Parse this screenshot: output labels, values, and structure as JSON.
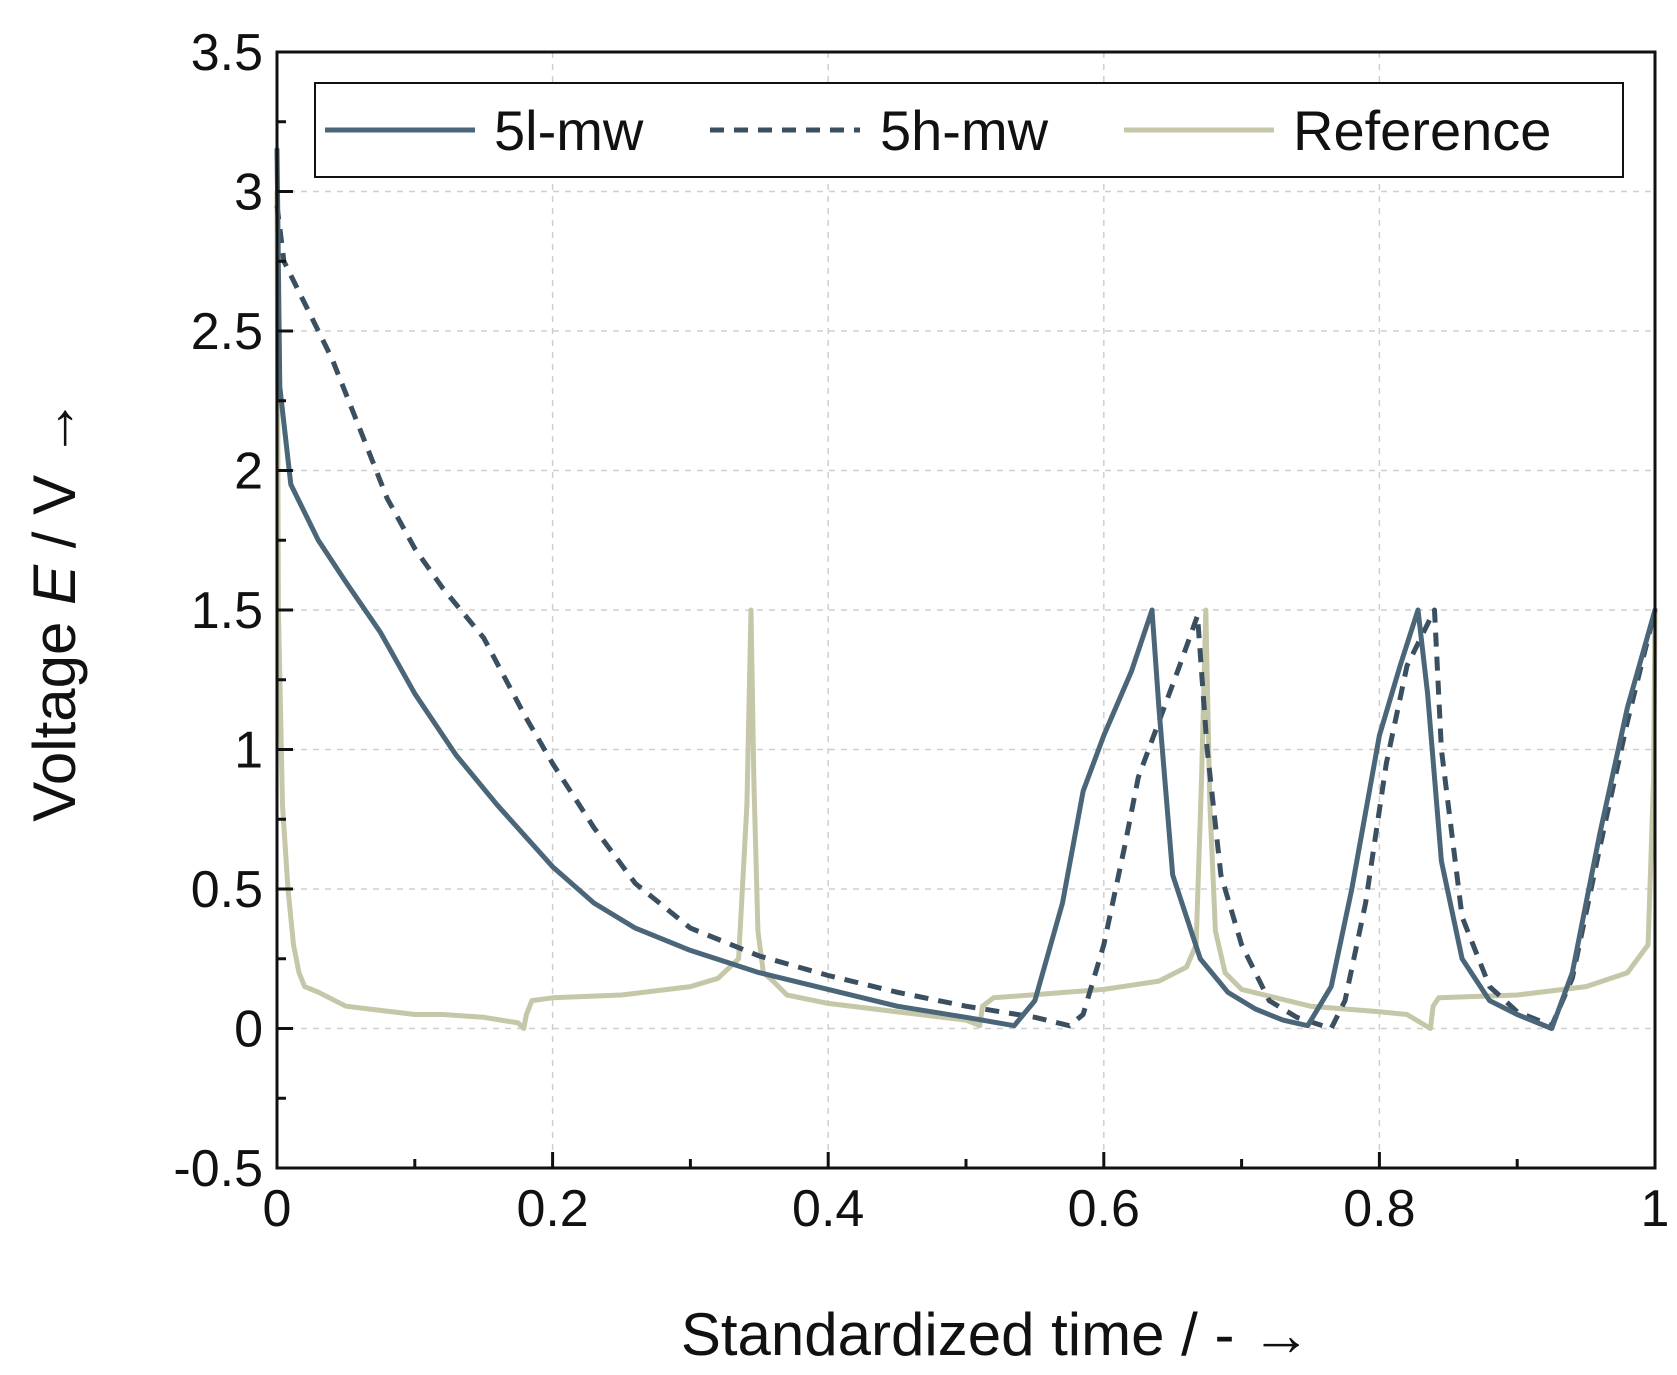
{
  "chart_data": {
    "type": "line",
    "title": "",
    "xlabel": "Standardized time / - →",
    "ylabel_parts": [
      "Voltage ",
      "E",
      " / V →"
    ],
    "xlim": [
      0,
      1
    ],
    "ylim": [
      -0.5,
      3.5
    ],
    "x_ticks": [
      0,
      0.2,
      0.4,
      0.6,
      0.8,
      1
    ],
    "x_tick_labels": [
      "0",
      "0.2",
      "0.4",
      "0.6",
      "0.8",
      "1"
    ],
    "y_ticks": [
      -0.5,
      0,
      0.5,
      1,
      1.5,
      2,
      2.5,
      3,
      3.5
    ],
    "y_tick_labels": [
      "-0.5",
      "0",
      "0.5",
      "1",
      "1.5",
      "2",
      "2.5",
      "3",
      "3.5"
    ],
    "grid": true,
    "legend_position": "top",
    "series": [
      {
        "name": "5l-mw",
        "color": "#4a6678",
        "style": "solid",
        "x": [
          0,
          0.002,
          0.01,
          0.03,
          0.05,
          0.075,
          0.1,
          0.13,
          0.16,
          0.2,
          0.23,
          0.26,
          0.3,
          0.35,
          0.4,
          0.45,
          0.5,
          0.535,
          0.55,
          0.57,
          0.585,
          0.6,
          0.62,
          0.635,
          0.64,
          0.65,
          0.67,
          0.69,
          0.71,
          0.73,
          0.748,
          0.765,
          0.78,
          0.8,
          0.815,
          0.828,
          0.835,
          0.845,
          0.86,
          0.88,
          0.9,
          0.925,
          0.94,
          0.96,
          0.98,
          1.0
        ],
        "y": [
          3.15,
          2.3,
          1.95,
          1.75,
          1.6,
          1.42,
          1.2,
          0.98,
          0.8,
          0.58,
          0.45,
          0.36,
          0.28,
          0.2,
          0.14,
          0.08,
          0.04,
          0.01,
          0.1,
          0.45,
          0.85,
          1.05,
          1.28,
          1.5,
          1.15,
          0.55,
          0.25,
          0.13,
          0.07,
          0.03,
          0.01,
          0.15,
          0.5,
          1.05,
          1.3,
          1.5,
          1.2,
          0.6,
          0.25,
          0.1,
          0.05,
          0.0,
          0.2,
          0.7,
          1.15,
          1.5
        ]
      },
      {
        "name": "5h-mw",
        "color": "#3a4f60",
        "style": "dashed",
        "x": [
          0,
          0.005,
          0.02,
          0.04,
          0.06,
          0.08,
          0.1,
          0.12,
          0.15,
          0.18,
          0.2,
          0.23,
          0.26,
          0.3,
          0.35,
          0.4,
          0.45,
          0.5,
          0.55,
          0.575,
          0.585,
          0.6,
          0.615,
          0.625,
          0.64,
          0.655,
          0.668,
          0.675,
          0.685,
          0.7,
          0.72,
          0.74,
          0.765,
          0.775,
          0.79,
          0.805,
          0.82,
          0.835,
          0.84,
          0.845,
          0.86,
          0.88,
          0.9,
          0.925,
          0.94,
          0.96,
          0.98,
          1.0
        ],
        "y": [
          2.95,
          2.75,
          2.6,
          2.4,
          2.15,
          1.9,
          1.72,
          1.58,
          1.4,
          1.12,
          0.95,
          0.72,
          0.52,
          0.36,
          0.26,
          0.19,
          0.13,
          0.08,
          0.04,
          0.01,
          0.05,
          0.3,
          0.65,
          0.9,
          1.1,
          1.3,
          1.48,
          1.0,
          0.55,
          0.3,
          0.1,
          0.04,
          0.0,
          0.1,
          0.45,
          0.95,
          1.3,
          1.45,
          1.5,
          1.0,
          0.4,
          0.15,
          0.06,
          0.01,
          0.18,
          0.65,
          1.1,
          1.5
        ]
      },
      {
        "name": "Reference",
        "color": "#c5c7a8",
        "style": "solid",
        "x": [
          0,
          0.001,
          0.004,
          0.008,
          0.012,
          0.016,
          0.02,
          0.03,
          0.05,
          0.1,
          0.12,
          0.15,
          0.175,
          0.179,
          0.181,
          0.185,
          0.2,
          0.25,
          0.3,
          0.32,
          0.335,
          0.341,
          0.344,
          0.346,
          0.349,
          0.353,
          0.36,
          0.37,
          0.4,
          0.45,
          0.5,
          0.51,
          0.512,
          0.52,
          0.6,
          0.64,
          0.66,
          0.667,
          0.671,
          0.674,
          0.677,
          0.681,
          0.688,
          0.7,
          0.75,
          0.8,
          0.82,
          0.837,
          0.839,
          0.843,
          0.9,
          0.95,
          0.98,
          0.995,
          0.999,
          1.0
        ],
        "y": [
          3.0,
          1.5,
          0.8,
          0.5,
          0.3,
          0.2,
          0.15,
          0.13,
          0.08,
          0.05,
          0.05,
          0.04,
          0.02,
          0.0,
          0.05,
          0.1,
          0.11,
          0.12,
          0.15,
          0.18,
          0.25,
          0.8,
          1.5,
          0.9,
          0.35,
          0.2,
          0.17,
          0.12,
          0.09,
          0.06,
          0.03,
          0.01,
          0.08,
          0.11,
          0.14,
          0.17,
          0.22,
          0.3,
          0.9,
          1.5,
          0.8,
          0.35,
          0.2,
          0.14,
          0.08,
          0.06,
          0.05,
          0.0,
          0.08,
          0.11,
          0.12,
          0.15,
          0.2,
          0.3,
          0.9,
          1.5
        ]
      }
    ]
  }
}
